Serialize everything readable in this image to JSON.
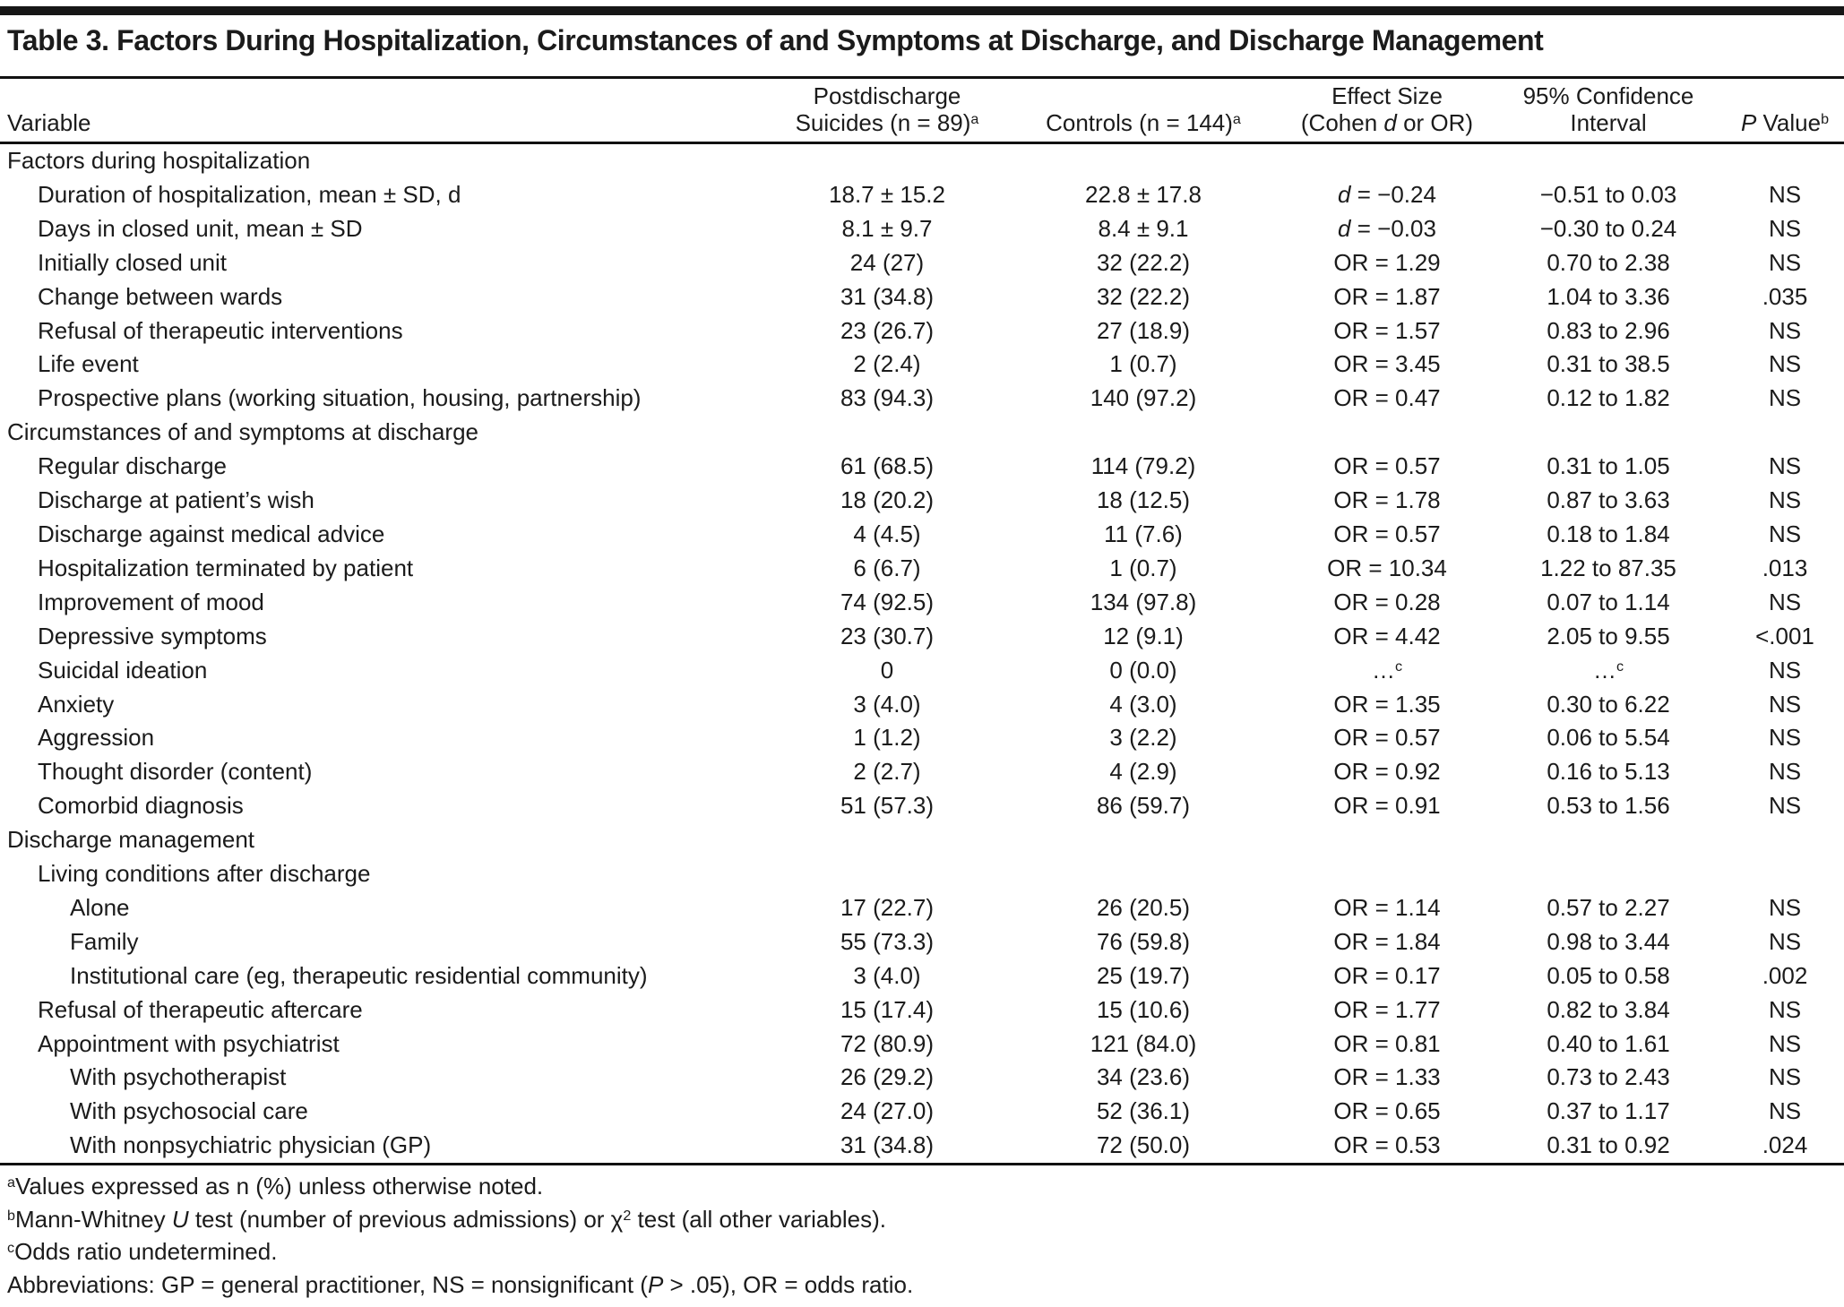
{
  "title": "Table 3. Factors During Hospitalization, Circumstances of and Symptoms at Discharge, and Discharge Management",
  "colors": {
    "text": "#1b1b1b",
    "rule": "#111111",
    "bottom_thick_rule": "#5d5d5d",
    "background": "#ffffff"
  },
  "columns": {
    "variable": "Variable",
    "suicides_line1": "Postdischarge",
    "suicides_line2": "Suicides (n = 89)",
    "suicides_sup": "a",
    "controls": "Controls (n = 144)",
    "controls_sup": "a",
    "effect_line1": "Effect Size",
    "effect_line2_pre": "(Cohen ",
    "effect_line2_italic": "d",
    "effect_line2_post": " or OR)",
    "ci_line1": "95% Confidence",
    "ci_line2": "Interval",
    "p_italic": "P",
    "p_post": " Value",
    "p_sup": "b"
  },
  "rows": [
    {
      "label": "Factors during hospitalization",
      "indent": 0
    },
    {
      "label": "Duration of hospitalization, mean ± SD, d",
      "indent": 1,
      "suicides": "18.7 ± 15.2",
      "controls": "22.8 ± 17.8",
      "effect": {
        "type": "d",
        "value": "−0.24"
      },
      "ci": "−0.51 to 0.03",
      "p": "NS"
    },
    {
      "label": "Days in closed unit, mean ± SD",
      "indent": 1,
      "suicides": "8.1 ± 9.7",
      "controls": "8.4 ± 9.1",
      "effect": {
        "type": "d",
        "value": "−0.03"
      },
      "ci": "−0.30 to 0.24",
      "p": "NS"
    },
    {
      "label": "Initially closed unit",
      "indent": 1,
      "suicides": "24 (27)",
      "controls": "32 (22.2)",
      "effect": {
        "type": "or",
        "value": "1.29"
      },
      "ci": "0.70 to 2.38",
      "p": "NS"
    },
    {
      "label": "Change between wards",
      "indent": 1,
      "suicides": "31 (34.8)",
      "controls": "32 (22.2)",
      "effect": {
        "type": "or",
        "value": "1.87"
      },
      "ci": "1.04 to 3.36",
      "p": ".035"
    },
    {
      "label": "Refusal of therapeutic interventions",
      "indent": 1,
      "suicides": "23 (26.7)",
      "controls": "27 (18.9)",
      "effect": {
        "type": "or",
        "value": "1.57"
      },
      "ci": "0.83 to 2.96",
      "p": "NS"
    },
    {
      "label": "Life event",
      "indent": 1,
      "suicides": "2 (2.4)",
      "controls": "1 (0.7)",
      "effect": {
        "type": "or",
        "value": "3.45"
      },
      "ci": "0.31 to 38.5",
      "p": "NS"
    },
    {
      "label": "Prospective plans (working situation, housing, partnership)",
      "indent": 1,
      "suicides": "83 (94.3)",
      "controls": "140 (97.2)",
      "effect": {
        "type": "or",
        "value": "0.47"
      },
      "ci": "0.12 to 1.82",
      "p": "NS"
    },
    {
      "label": "Circumstances of and symptoms at discharge",
      "indent": 0
    },
    {
      "label": "Regular discharge",
      "indent": 1,
      "suicides": "61 (68.5)",
      "controls": "114 (79.2)",
      "effect": {
        "type": "or",
        "value": "0.57"
      },
      "ci": "0.31 to 1.05",
      "p": "NS"
    },
    {
      "label": "Discharge at patient’s wish",
      "indent": 1,
      "suicides": "18 (20.2)",
      "controls": "18 (12.5)",
      "effect": {
        "type": "or",
        "value": "1.78"
      },
      "ci": "0.87 to 3.63",
      "p": "NS"
    },
    {
      "label": "Discharge against medical advice",
      "indent": 1,
      "suicides": "4 (4.5)",
      "controls": "11 (7.6)",
      "effect": {
        "type": "or",
        "value": "0.57"
      },
      "ci": "0.18 to 1.84",
      "p": "NS"
    },
    {
      "label": "Hospitalization terminated by patient",
      "indent": 1,
      "suicides": "6 (6.7)",
      "controls": "1 (0.7)",
      "effect": {
        "type": "or",
        "value": "10.34"
      },
      "ci": "1.22 to 87.35",
      "p": ".013"
    },
    {
      "label": "Improvement of mood",
      "indent": 1,
      "suicides": "74 (92.5)",
      "controls": "134 (97.8)",
      "effect": {
        "type": "or",
        "value": "0.28"
      },
      "ci": "0.07 to 1.14",
      "p": "NS"
    },
    {
      "label": "Depressive symptoms",
      "indent": 1,
      "suicides": "23 (30.7)",
      "controls": "12 (9.1)",
      "effect": {
        "type": "or",
        "value": "4.42"
      },
      "ci": "2.05 to 9.55",
      "p": "<.001"
    },
    {
      "label": "Suicidal ideation",
      "indent": 1,
      "suicides": "0",
      "controls": "0 (0.0)",
      "effect": {
        "type": "dots"
      },
      "ci": "dots",
      "p": "NS"
    },
    {
      "label": "Anxiety",
      "indent": 1,
      "suicides": "3 (4.0)",
      "controls": "4 (3.0)",
      "effect": {
        "type": "or",
        "value": "1.35"
      },
      "ci": "0.30 to 6.22",
      "p": "NS"
    },
    {
      "label": "Aggression",
      "indent": 1,
      "suicides": "1 (1.2)",
      "controls": "3 (2.2)",
      "effect": {
        "type": "or",
        "value": "0.57"
      },
      "ci": "0.06 to 5.54",
      "p": "NS"
    },
    {
      "label": "Thought disorder (content)",
      "indent": 1,
      "suicides": "2 (2.7)",
      "controls": "4 (2.9)",
      "effect": {
        "type": "or",
        "value": "0.92"
      },
      "ci": "0.16 to 5.13",
      "p": "NS"
    },
    {
      "label": "Comorbid diagnosis",
      "indent": 1,
      "suicides": "51 (57.3)",
      "controls": "86 (59.7)",
      "effect": {
        "type": "or",
        "value": "0.91"
      },
      "ci": "0.53 to 1.56",
      "p": "NS"
    },
    {
      "label": "Discharge management",
      "indent": 0
    },
    {
      "label": "Living conditions after discharge",
      "indent": 1
    },
    {
      "label": "Alone",
      "indent": 2,
      "suicides": "17 (22.7)",
      "controls": "26 (20.5)",
      "effect": {
        "type": "or",
        "value": "1.14"
      },
      "ci": "0.57 to 2.27",
      "p": "NS"
    },
    {
      "label": "Family",
      "indent": 2,
      "suicides": "55 (73.3)",
      "controls": "76 (59.8)",
      "effect": {
        "type": "or",
        "value": "1.84"
      },
      "ci": "0.98 to 3.44",
      "p": "NS"
    },
    {
      "label": "Institutional care (eg, therapeutic residential community)",
      "indent": 2,
      "suicides": "3 (4.0)",
      "controls": "25 (19.7)",
      "effect": {
        "type": "or",
        "value": "0.17"
      },
      "ci": "0.05 to 0.58",
      "p": ".002"
    },
    {
      "label": "Refusal of therapeutic aftercare",
      "indent": 1,
      "suicides": "15 (17.4)",
      "controls": "15 (10.6)",
      "effect": {
        "type": "or",
        "value": "1.77"
      },
      "ci": "0.82 to 3.84",
      "p": "NS"
    },
    {
      "label": "Appointment with psychiatrist",
      "indent": 1,
      "suicides": "72 (80.9)",
      "controls": "121 (84.0)",
      "effect": {
        "type": "or",
        "value": "0.81"
      },
      "ci": "0.40 to 1.61",
      "p": "NS"
    },
    {
      "label": "With psychotherapist",
      "indent": 2,
      "suicides": "26 (29.2)",
      "controls": "34 (23.6)",
      "effect": {
        "type": "or",
        "value": "1.33"
      },
      "ci": "0.73 to 2.43",
      "p": "NS"
    },
    {
      "label": "With psychosocial care",
      "indent": 2,
      "suicides": "24 (27.0)",
      "controls": "52 (36.1)",
      "effect": {
        "type": "or",
        "value": "0.65"
      },
      "ci": "0.37 to 1.17",
      "p": "NS"
    },
    {
      "label": "With nonpsychiatric physician (GP)",
      "indent": 2,
      "suicides": "31 (34.8)",
      "controls": "72 (50.0)",
      "effect": {
        "type": "or",
        "value": "0.53"
      },
      "ci": "0.31 to 0.92",
      "p": ".024"
    }
  ],
  "effect_labels": {
    "d_prefix": "d",
    "or_prefix": "OR",
    "equals": " = ",
    "dots": "…",
    "dots_sup": "c"
  },
  "footnotes": [
    {
      "marker": "a",
      "parts": [
        {
          "t": "Values expressed as n (%) unless otherwise noted."
        }
      ]
    },
    {
      "marker": "b",
      "parts": [
        {
          "t": "Mann-Whitney "
        },
        {
          "t": "U",
          "i": true
        },
        {
          "t": " test (number of previous admissions) or χ"
        },
        {
          "t": "2",
          "sup": true
        },
        {
          "t": " test (all other variables)."
        }
      ]
    },
    {
      "marker": "c",
      "parts": [
        {
          "t": "Odds ratio undetermined."
        }
      ]
    },
    {
      "marker": "",
      "parts": [
        {
          "t": "Abbreviations: GP = general practitioner, NS = nonsignificant ("
        },
        {
          "t": "P",
          "i": true
        },
        {
          "t": " > .05), OR = odds ratio."
        }
      ]
    }
  ]
}
